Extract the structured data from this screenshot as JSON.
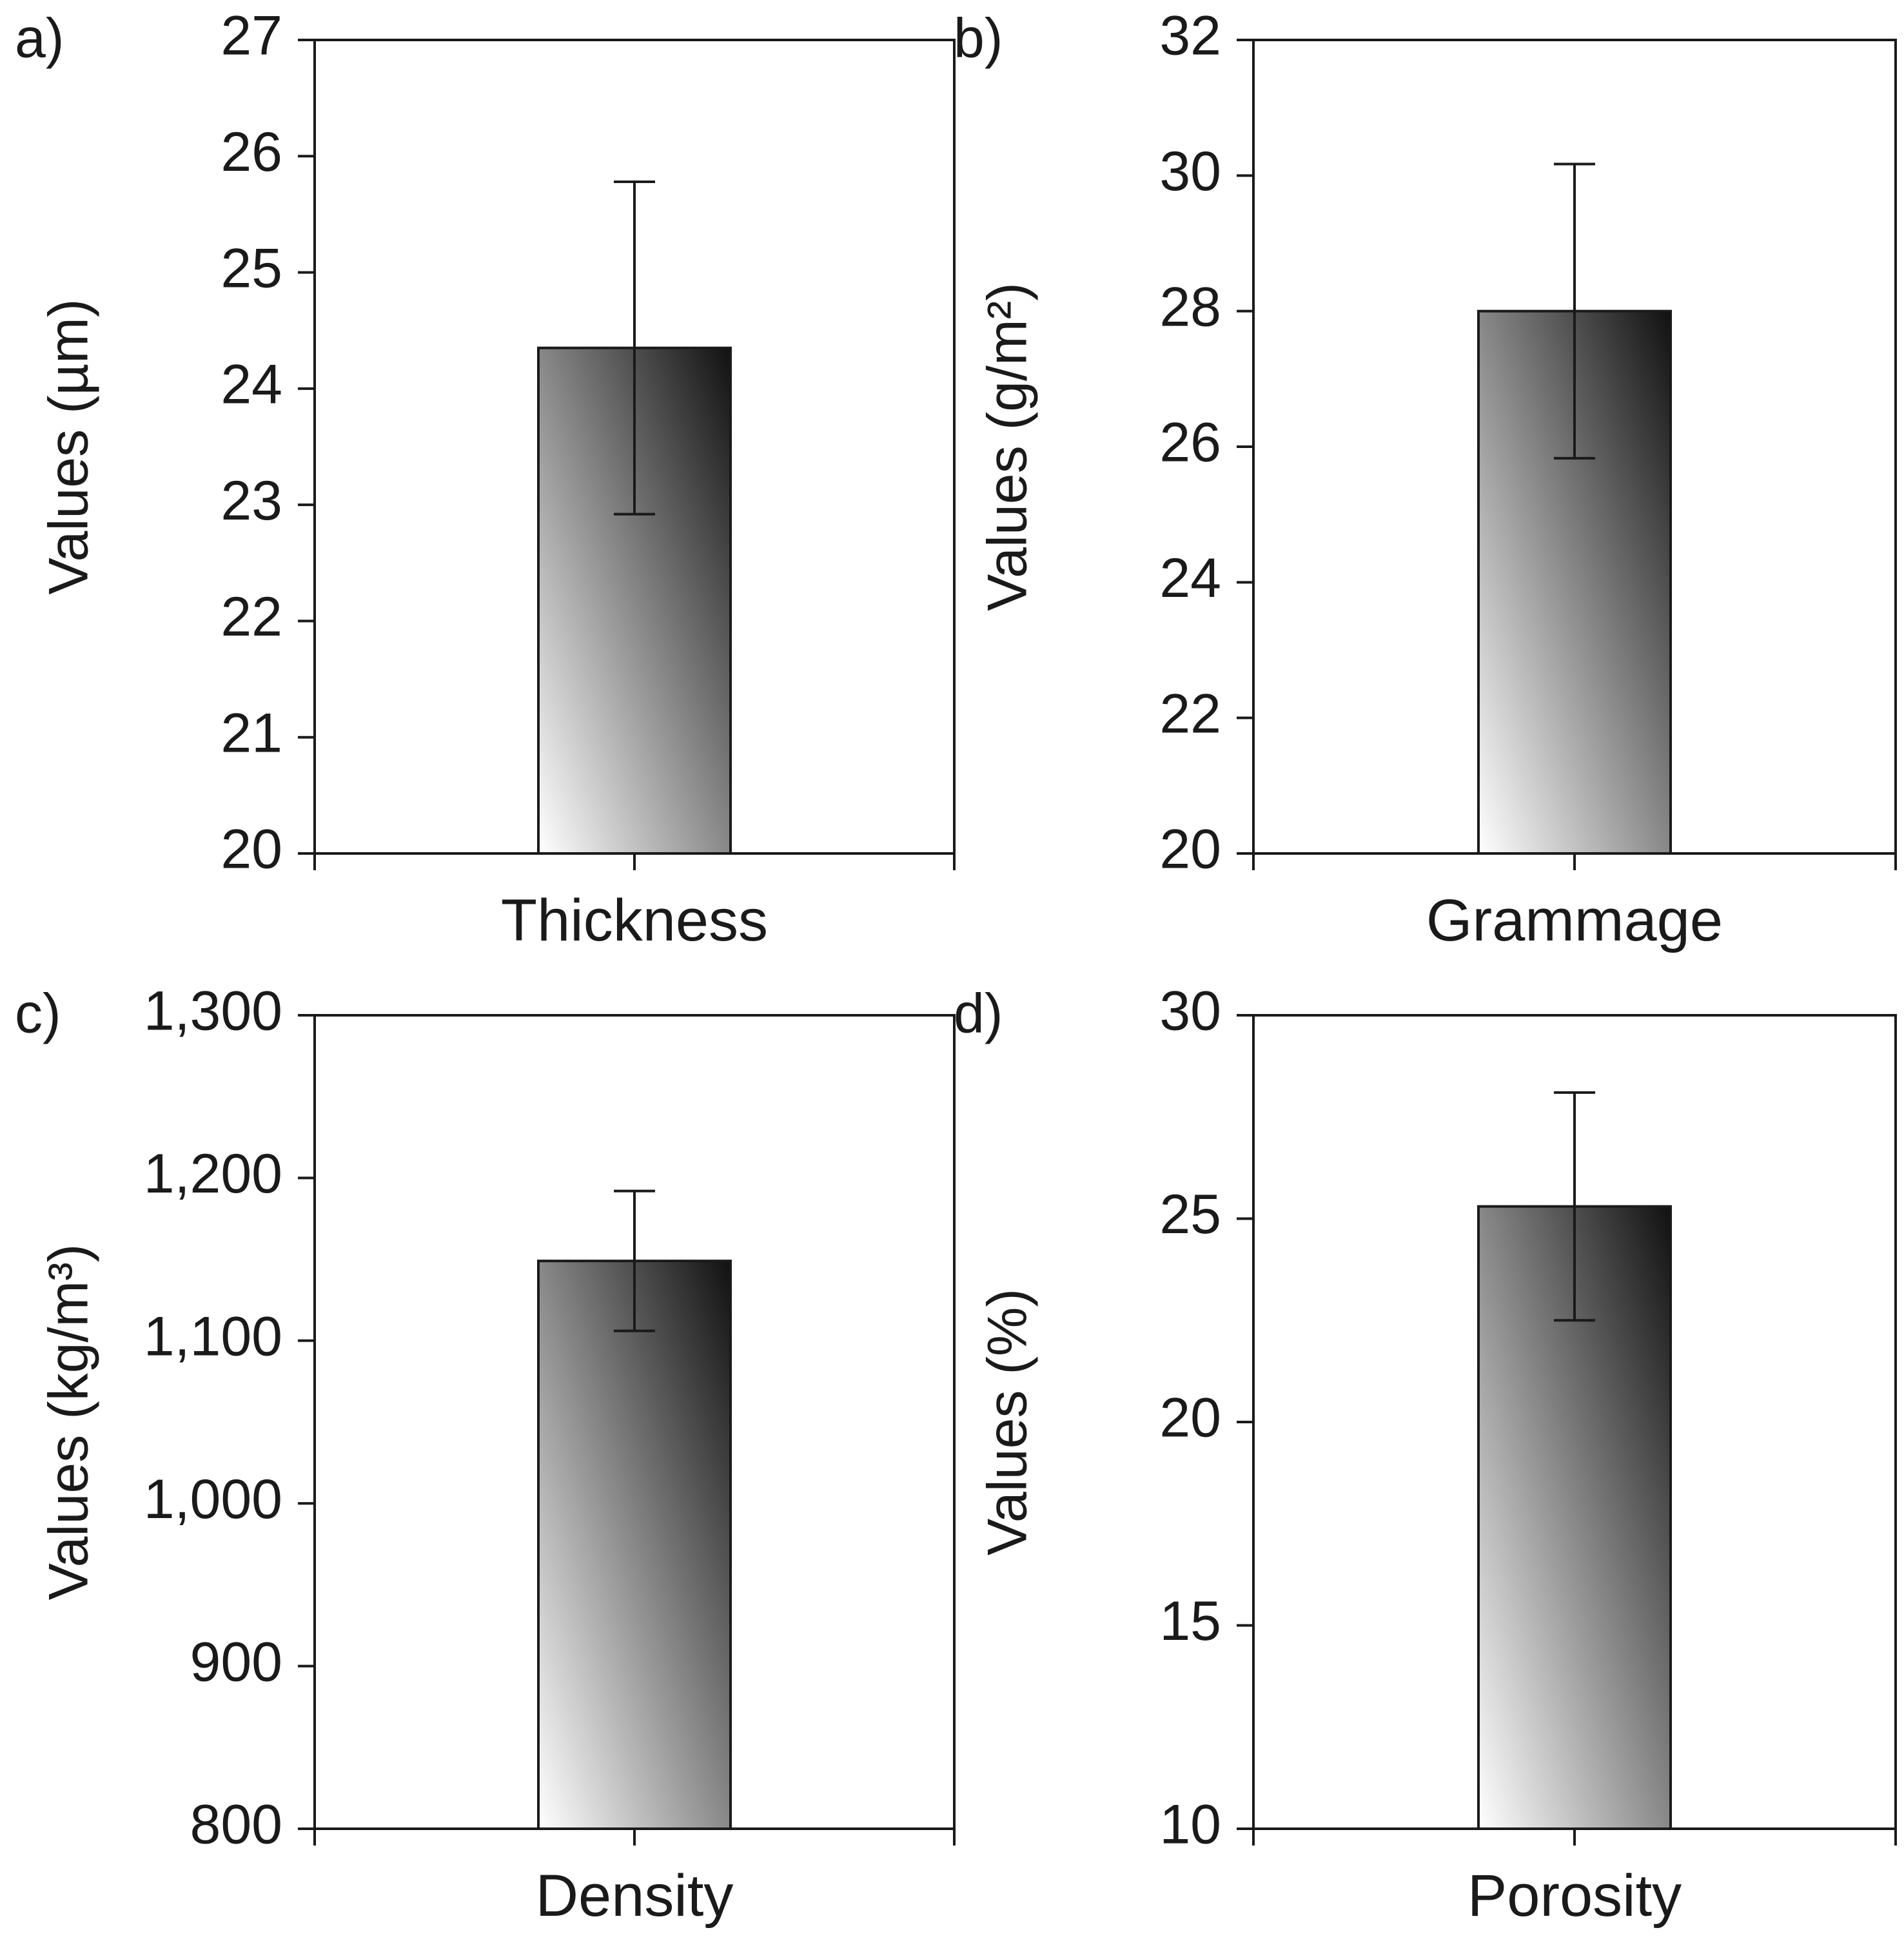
{
  "colors": {
    "bar_top": "#111111",
    "bar_bottom": "#ffffff",
    "axis": "#1a1a1a",
    "background": "#ffffff"
  },
  "chart_data": [
    {
      "type": "bar",
      "panel_label": "a)",
      "categories": [
        "Thickness"
      ],
      "values": [
        24.35
      ],
      "errors": [
        1.43
      ],
      "ylabel": "Values (µm)",
      "xlabel": "",
      "ylim": [
        20,
        27
      ],
      "yticks": [
        20,
        21,
        22,
        23,
        24,
        25,
        26,
        27
      ],
      "ytick_labels": [
        "20",
        "21",
        "22",
        "23",
        "24",
        "25",
        "26",
        "27"
      ],
      "grid": false
    },
    {
      "type": "bar",
      "panel_label": "b)",
      "categories": [
        "Grammage"
      ],
      "values": [
        28.0
      ],
      "errors": [
        2.17
      ],
      "ylabel": "Values (g/m²)",
      "xlabel": "",
      "ylim": [
        20,
        32
      ],
      "yticks": [
        20,
        22,
        24,
        26,
        28,
        30,
        32
      ],
      "ytick_labels": [
        "20",
        "22",
        "24",
        "26",
        "28",
        "30",
        "32"
      ],
      "grid": false
    },
    {
      "type": "bar",
      "panel_label": "c)",
      "categories": [
        "Density"
      ],
      "values": [
        1149
      ],
      "errors": [
        43
      ],
      "ylabel": "Values (kg/m³)",
      "xlabel": "",
      "ylim": [
        800,
        1300
      ],
      "yticks": [
        800,
        900,
        1000,
        1100,
        1200,
        1300
      ],
      "ytick_labels": [
        "800",
        "900",
        "1,000",
        "1,100",
        "1,200",
        "1,300"
      ],
      "grid": false
    },
    {
      "type": "bar",
      "panel_label": "d)",
      "categories": [
        "Porosity"
      ],
      "values": [
        25.3
      ],
      "errors": [
        2.8
      ],
      "ylabel": "Values (%)",
      "xlabel": "",
      "ylim": [
        10,
        30
      ],
      "yticks": [
        10,
        15,
        20,
        25,
        30
      ],
      "ytick_labels": [
        "10",
        "15",
        "20",
        "25",
        "30"
      ],
      "grid": false
    }
  ]
}
